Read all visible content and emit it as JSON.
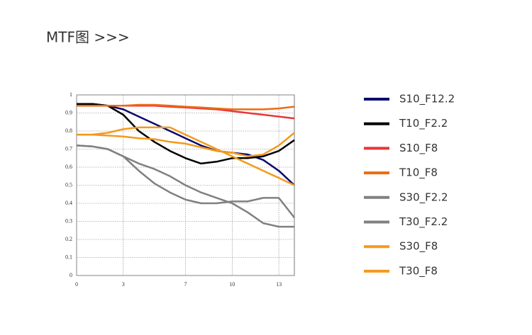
{
  "chart_data": {
    "type": "line",
    "title": "MTF图  >>>",
    "x": [
      0,
      1,
      2,
      3,
      4,
      5,
      6,
      7,
      8,
      9,
      10,
      11,
      12,
      13,
      14
    ],
    "xlim": [
      0,
      14
    ],
    "xticks": [
      0,
      3,
      7,
      10,
      13
    ],
    "ylim": [
      0,
      1
    ],
    "yticks": [
      0,
      0.1,
      0.2,
      0.3,
      0.4,
      0.5,
      0.6,
      0.7,
      0.8,
      0.9,
      1
    ],
    "grid": true,
    "series": [
      {
        "name": "S10_F12.2",
        "color": "#0a0a6e",
        "values": [
          0.95,
          0.95,
          0.94,
          0.92,
          0.88,
          0.84,
          0.8,
          0.76,
          0.72,
          0.69,
          0.68,
          0.67,
          0.64,
          0.58,
          0.5
        ]
      },
      {
        "name": "T10_F2.2",
        "color": "#000000",
        "values": [
          0.95,
          0.95,
          0.94,
          0.89,
          0.8,
          0.74,
          0.69,
          0.65,
          0.62,
          0.63,
          0.65,
          0.65,
          0.66,
          0.69,
          0.75
        ]
      },
      {
        "name": "S10_F8",
        "color": "#e8363a",
        "values": [
          0.94,
          0.94,
          0.94,
          0.94,
          0.94,
          0.94,
          0.935,
          0.93,
          0.925,
          0.92,
          0.91,
          0.9,
          0.89,
          0.88,
          0.87
        ]
      },
      {
        "name": "T10_F8",
        "color": "#ee6a12",
        "values": [
          0.94,
          0.94,
          0.94,
          0.94,
          0.945,
          0.945,
          0.94,
          0.935,
          0.93,
          0.925,
          0.92,
          0.92,
          0.92,
          0.925,
          0.935
        ]
      },
      {
        "name": "S30_F2.2",
        "color": "#808080",
        "values": [
          0.72,
          0.715,
          0.7,
          0.66,
          0.58,
          0.51,
          0.46,
          0.42,
          0.4,
          0.4,
          0.41,
          0.41,
          0.43,
          0.43,
          0.32
        ]
      },
      {
        "name": "T30_F2.2",
        "color": "#808080",
        "values": [
          0.72,
          0.715,
          0.7,
          0.66,
          0.62,
          0.59,
          0.55,
          0.5,
          0.46,
          0.43,
          0.4,
          0.35,
          0.29,
          0.27,
          0.27
        ]
      },
      {
        "name": "S30_F8",
        "color": "#f39a1e",
        "values": [
          0.78,
          0.78,
          0.79,
          0.81,
          0.82,
          0.82,
          0.82,
          0.78,
          0.74,
          0.7,
          0.66,
          0.62,
          0.58,
          0.54,
          0.5
        ]
      },
      {
        "name": "T30_F8",
        "color": "#f39a1e",
        "values": [
          0.78,
          0.78,
          0.775,
          0.77,
          0.76,
          0.755,
          0.74,
          0.73,
          0.71,
          0.69,
          0.68,
          0.66,
          0.67,
          0.72,
          0.79
        ]
      }
    ]
  }
}
